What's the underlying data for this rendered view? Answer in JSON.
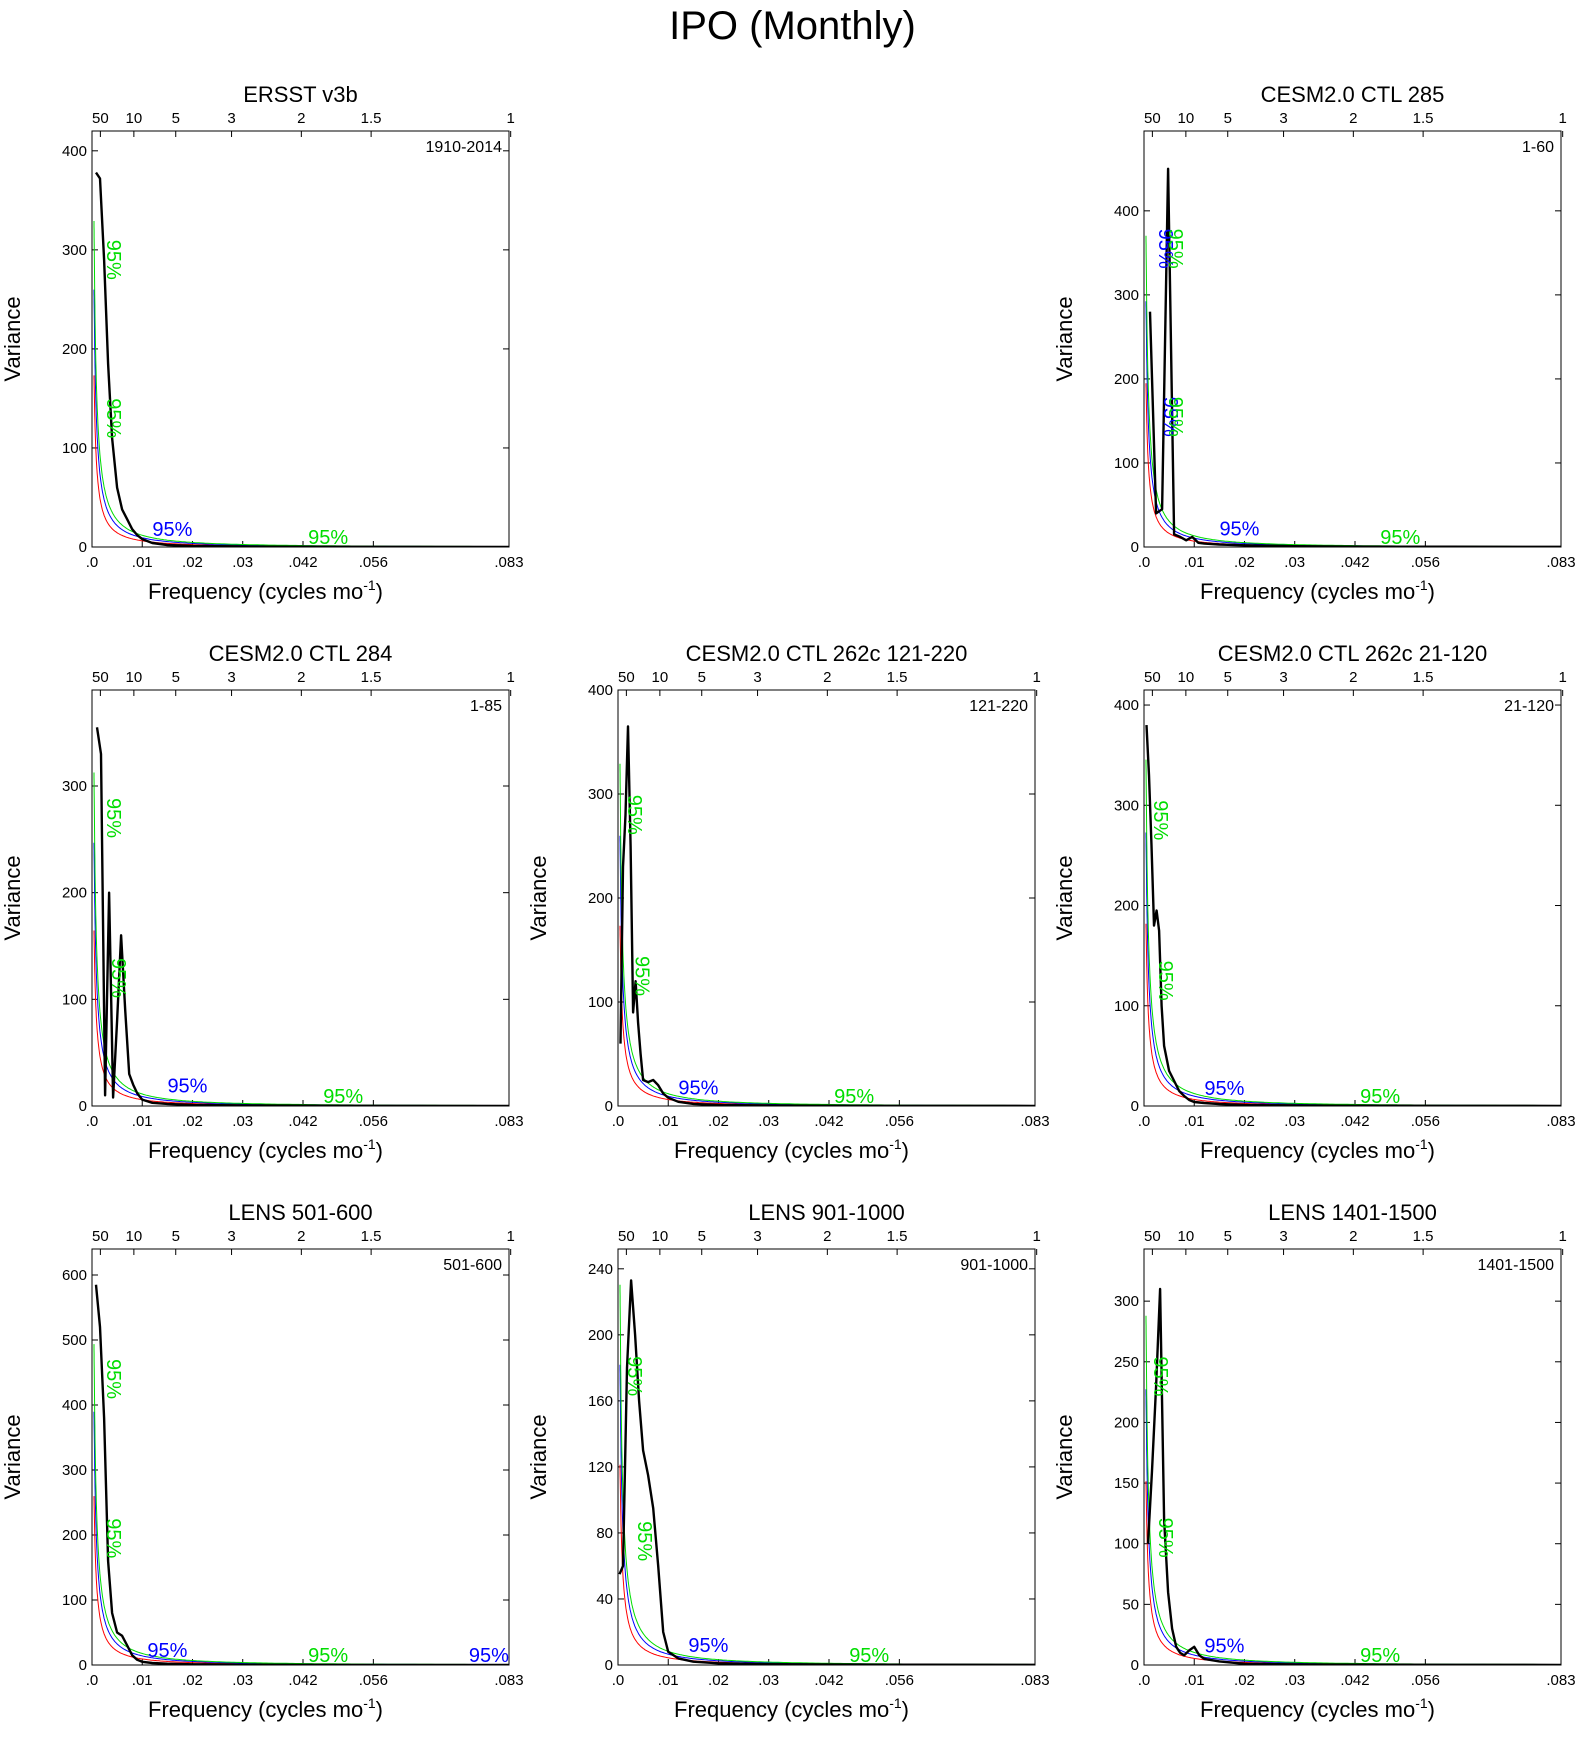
{
  "page_title": "IPO (Monthly)",
  "colors": {
    "series": "#000000",
    "red_noise": "#ff0000",
    "blue_ci": "#0000ff",
    "green_ci": "#00dd00",
    "frame": "#000000"
  },
  "common": {
    "xlabel": "Frequency (cycles mo",
    "xlabel_sup": "-1",
    "xlabel_close": ")",
    "ylabel": "Variance",
    "x_ticks": [
      ".0",
      ".01",
      ".02",
      ".03",
      ".042",
      ".056",
      ".083"
    ],
    "x_tick_values": [
      0.0,
      0.01,
      0.02,
      0.03,
      0.042,
      0.056,
      0.083
    ],
    "period_ticks": [
      "50",
      "10",
      "5",
      "3",
      "2",
      "1.5",
      "1"
    ],
    "period_tick_values": [
      50,
      10,
      5,
      3,
      2,
      1.5,
      1
    ],
    "xlim": [
      0,
      0.083
    ],
    "ci_label": "95%"
  },
  "chart_data": [
    {
      "type": "line",
      "title": "ERSST v3b",
      "range_label": "1910-2014",
      "ylim": [
        0,
        420
      ],
      "yticks": [
        0,
        100,
        200,
        300,
        400
      ],
      "x": [
        0.0008,
        0.0016,
        0.0024,
        0.0032,
        0.004,
        0.005,
        0.006,
        0.007,
        0.008,
        0.009,
        0.01,
        0.012,
        0.015,
        0.02,
        0.03,
        0.04,
        0.06,
        0.083
      ],
      "values": [
        378,
        372,
        290,
        185,
        110,
        60,
        38,
        28,
        18,
        12,
        8,
        4,
        2,
        1,
        0.5,
        0.3,
        0.2,
        0.1
      ],
      "red_scale": 40,
      "ci_labels": [
        {
          "x": 0.003,
          "y": 290,
          "color": "green",
          "rot": 90
        },
        {
          "x": 0.003,
          "y": 130,
          "color": "green",
          "rot": 90
        },
        {
          "x": 0.016,
          "y": 8,
          "color": "blue",
          "rot": 0
        },
        {
          "x": 0.047,
          "y": 0,
          "color": "green",
          "rot": 0
        }
      ]
    },
    {
      "type": "line",
      "title": "CESM2.0 CTL 285",
      "range_label": "1-60",
      "ylim": [
        0,
        495
      ],
      "yticks": [
        0,
        100,
        200,
        300,
        400
      ],
      "x": [
        0.0012,
        0.0024,
        0.0036,
        0.0048,
        0.006,
        0.0072,
        0.0084,
        0.0096,
        0.0108,
        0.012,
        0.015,
        0.02,
        0.03,
        0.04,
        0.06,
        0.083
      ],
      "values": [
        280,
        40,
        45,
        450,
        15,
        12,
        8,
        12,
        5,
        4,
        3,
        2,
        1,
        0.5,
        0.3,
        0.2
      ],
      "red_scale": 45,
      "ci_labels": [
        {
          "x": 0.003,
          "y": 355,
          "color": "blue",
          "rot": 90
        },
        {
          "x": 0.005,
          "y": 355,
          "color": "green",
          "rot": 90
        },
        {
          "x": 0.004,
          "y": 155,
          "color": "blue",
          "rot": 90
        },
        {
          "x": 0.005,
          "y": 155,
          "color": "green",
          "rot": 90
        },
        {
          "x": 0.019,
          "y": 10,
          "color": "blue",
          "rot": 0
        },
        {
          "x": 0.051,
          "y": 0,
          "color": "green",
          "rot": 0
        }
      ]
    },
    {
      "type": "line",
      "title": "CESM2.0 CTL 284",
      "range_label": "1-85",
      "ylim": [
        0,
        390
      ],
      "yticks": [
        0,
        100,
        200,
        300
      ],
      "x": [
        0.001,
        0.0018,
        0.0026,
        0.0034,
        0.0042,
        0.005,
        0.0058,
        0.0066,
        0.0074,
        0.0082,
        0.009,
        0.01,
        0.012,
        0.015,
        0.02,
        0.03,
        0.04,
        0.06,
        0.083
      ],
      "values": [
        355,
        330,
        10,
        200,
        8,
        80,
        160,
        90,
        30,
        20,
        12,
        6,
        3,
        2,
        1,
        0.6,
        0.4,
        0.2,
        0.1
      ],
      "red_scale": 38,
      "ci_labels": [
        {
          "x": 0.003,
          "y": 270,
          "color": "green",
          "rot": 90
        },
        {
          "x": 0.004,
          "y": 120,
          "color": "green",
          "rot": 90
        },
        {
          "x": 0.019,
          "y": 10,
          "color": "blue",
          "rot": 0
        },
        {
          "x": 0.05,
          "y": 0,
          "color": "green",
          "rot": 0
        }
      ]
    },
    {
      "type": "line",
      "title": "CESM2.0 CTL 262c 121-220",
      "range_label": "121-220",
      "ylim": [
        0,
        400
      ],
      "yticks": [
        0,
        100,
        200,
        300,
        400
      ],
      "x": [
        0.0005,
        0.001,
        0.0015,
        0.002,
        0.0025,
        0.003,
        0.0035,
        0.004,
        0.0045,
        0.005,
        0.006,
        0.007,
        0.008,
        0.009,
        0.01,
        0.012,
        0.015,
        0.02,
        0.03,
        0.04,
        0.06,
        0.083
      ],
      "values": [
        60,
        230,
        280,
        365,
        250,
        90,
        120,
        80,
        50,
        25,
        23,
        25,
        20,
        12,
        8,
        4,
        2,
        1,
        0.5,
        0.3,
        0.2,
        0.1
      ],
      "red_scale": 40,
      "ci_labels": [
        {
          "x": 0.002,
          "y": 280,
          "color": "green",
          "rot": 90
        },
        {
          "x": 0.0035,
          "y": 125,
          "color": "green",
          "rot": 90
        },
        {
          "x": 0.016,
          "y": 8,
          "color": "blue",
          "rot": 0
        },
        {
          "x": 0.047,
          "y": 0,
          "color": "green",
          "rot": 0
        }
      ]
    },
    {
      "type": "line",
      "title": "CESM2.0 CTL 262c 21-120",
      "range_label": "21-120",
      "ylim": [
        0,
        415
      ],
      "yticks": [
        0,
        100,
        200,
        300,
        400
      ],
      "x": [
        0.0005,
        0.001,
        0.0015,
        0.002,
        0.0025,
        0.003,
        0.0035,
        0.004,
        0.005,
        0.006,
        0.007,
        0.008,
        0.009,
        0.01,
        0.012,
        0.015,
        0.02,
        0.03,
        0.04,
        0.06,
        0.083
      ],
      "values": [
        380,
        330,
        260,
        180,
        195,
        175,
        100,
        60,
        35,
        25,
        15,
        10,
        6,
        4,
        3,
        2,
        1,
        0.5,
        0.3,
        0.2,
        0.1
      ],
      "red_scale": 42,
      "ci_labels": [
        {
          "x": 0.002,
          "y": 285,
          "color": "green",
          "rot": 90
        },
        {
          "x": 0.003,
          "y": 125,
          "color": "green",
          "rot": 90
        },
        {
          "x": 0.016,
          "y": 8,
          "color": "blue",
          "rot": 0
        },
        {
          "x": 0.047,
          "y": 0,
          "color": "green",
          "rot": 0
        }
      ]
    },
    {
      "type": "line",
      "title": "LENS 501-600",
      "range_label": "501-600",
      "ylim": [
        0,
        640
      ],
      "yticks": [
        0,
        100,
        200,
        300,
        400,
        500,
        600
      ],
      "x": [
        0.0008,
        0.0016,
        0.0024,
        0.0032,
        0.004,
        0.005,
        0.006,
        0.007,
        0.008,
        0.009,
        0.01,
        0.012,
        0.015,
        0.02,
        0.03,
        0.04,
        0.06,
        0.083
      ],
      "values": [
        585,
        520,
        380,
        160,
        80,
        50,
        45,
        30,
        15,
        8,
        5,
        3,
        2,
        1,
        0.5,
        0.3,
        0.2,
        0.1
      ],
      "red_scale": 60,
      "ci_labels": [
        {
          "x": 0.003,
          "y": 440,
          "color": "green",
          "rot": 90
        },
        {
          "x": 0.003,
          "y": 195,
          "color": "green",
          "rot": 90
        },
        {
          "x": 0.015,
          "y": 8,
          "color": "blue",
          "rot": 0
        },
        {
          "x": 0.047,
          "y": 0,
          "color": "green",
          "rot": 0
        },
        {
          "x": 0.079,
          "y": 0,
          "color": "blue",
          "rot": 0
        }
      ]
    },
    {
      "type": "line",
      "title": "LENS 901-1000",
      "range_label": "901-1000",
      "ylim": [
        0,
        252
      ],
      "yticks": [
        0,
        40,
        80,
        120,
        160,
        200,
        240
      ],
      "x": [
        0.0003,
        0.001,
        0.0018,
        0.0026,
        0.0034,
        0.0042,
        0.005,
        0.006,
        0.007,
        0.008,
        0.009,
        0.01,
        0.012,
        0.015,
        0.02,
        0.03,
        0.04,
        0.06,
        0.083
      ],
      "values": [
        55,
        60,
        180,
        233,
        200,
        160,
        130,
        115,
        95,
        60,
        20,
        8,
        4,
        2,
        1,
        0.5,
        0.3,
        0.2,
        0.1
      ],
      "red_scale": 28,
      "ci_labels": [
        {
          "x": 0.002,
          "y": 175,
          "color": "green",
          "rot": 90
        },
        {
          "x": 0.004,
          "y": 75,
          "color": "green",
          "rot": 90
        },
        {
          "x": 0.018,
          "y": 6,
          "color": "blue",
          "rot": 0
        },
        {
          "x": 0.05,
          "y": 0,
          "color": "green",
          "rot": 0
        }
      ]
    },
    {
      "type": "line",
      "title": "LENS 1401-1500",
      "range_label": "1401-1500",
      "ylim": [
        0,
        343
      ],
      "yticks": [
        0,
        50,
        100,
        150,
        200,
        250,
        300
      ],
      "x": [
        0.0008,
        0.0016,
        0.0024,
        0.0032,
        0.004,
        0.0048,
        0.0056,
        0.0064,
        0.0072,
        0.008,
        0.009,
        0.01,
        0.011,
        0.012,
        0.015,
        0.02,
        0.03,
        0.04,
        0.06,
        0.083
      ],
      "values": [
        100,
        160,
        230,
        310,
        120,
        60,
        30,
        15,
        10,
        8,
        12,
        15,
        8,
        5,
        3,
        1,
        0.5,
        0.3,
        0.2,
        0.1
      ],
      "red_scale": 35,
      "ci_labels": [
        {
          "x": 0.002,
          "y": 238,
          "color": "green",
          "rot": 90
        },
        {
          "x": 0.003,
          "y": 105,
          "color": "green",
          "rot": 90
        },
        {
          "x": 0.016,
          "y": 8,
          "color": "blue",
          "rot": 0
        },
        {
          "x": 0.047,
          "y": 0,
          "color": "green",
          "rot": 0
        }
      ]
    }
  ]
}
